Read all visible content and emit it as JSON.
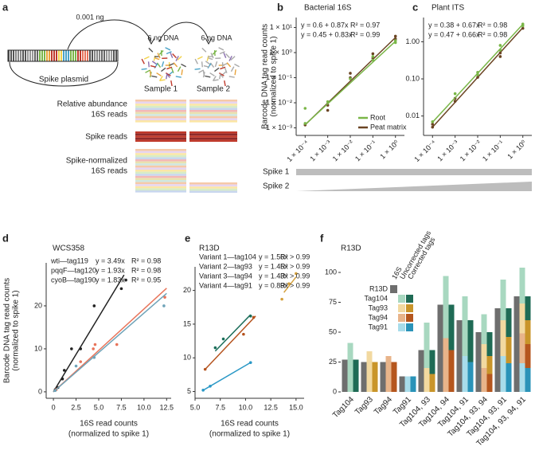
{
  "diagram": {
    "panel_label": "a",
    "amount": "0.001 ng",
    "dna": [
      "6 ng DNA",
      "6 ng DNA"
    ],
    "plasmid": "Spike plasmid",
    "samples": [
      "Sample 1",
      "Sample 2"
    ],
    "rows": [
      [
        "Relative abundance",
        "16S reads"
      ],
      [
        "Spike reads"
      ],
      [
        "Spike-normalized",
        "16S reads"
      ]
    ]
  },
  "spike_scale": [
    "Spike 1",
    "Spike 2"
  ],
  "chart_data": [
    {
      "type": "scatter",
      "panel_label": "b",
      "title": "Bacterial 16S",
      "ylabel": [
        "Barcode DNA tag read counts",
        "(normalized to spike 1)"
      ],
      "log_x": true,
      "log_y": true,
      "xlim": [
        4e-05,
        2.5
      ],
      "ylim": [
        0.0005,
        25
      ],
      "xticks": [
        {
          "value": 0.0001,
          "label": "1 × 10⁻⁴"
        },
        {
          "value": 0.001,
          "label": "1 × 10⁻³"
        },
        {
          "value": 0.01,
          "label": "1 × 10⁻²"
        },
        {
          "value": 0.1,
          "label": "1 × 10⁻¹"
        },
        {
          "value": 1,
          "label": "1 × 10⁰"
        }
      ],
      "yticks": [
        {
          "value": 0.001,
          "label": "1 × 10⁻³"
        },
        {
          "value": 0.01,
          "label": "1 × 10⁻²"
        },
        {
          "value": 0.1,
          "label": "1 × 10⁻¹"
        },
        {
          "value": 1,
          "label": "1 × 10⁰"
        },
        {
          "value": 10,
          "label": "1 × 10¹"
        }
      ],
      "legend": "lower right",
      "series": [
        {
          "name": "Peat matrix",
          "color": "#6b4423",
          "x": [
            0.0001,
            0.001,
            0.001,
            0.01,
            0.01,
            0.1,
            0.1,
            1,
            1
          ],
          "values": [
            0.0013,
            0.008,
            0.005,
            0.15,
            0.1,
            0.9,
            0.6,
            4.5,
            3.5
          ],
          "fit_x": [
            0.0001,
            1
          ],
          "fit_values": [
            0.00132,
            3.98
          ],
          "equation": "y = 0.6 + 0.87x",
          "r2": "R² = 0.97"
        },
        {
          "name": "Root",
          "color": "#7ab648",
          "x": [
            0.0001,
            0.0001,
            0.001,
            0.01,
            0.1,
            0.1,
            1,
            1
          ],
          "values": [
            0.0015,
            0.006,
            0.011,
            0.09,
            0.5,
            0.7,
            3,
            2.5
          ],
          "fit_x": [
            0.0001,
            1
          ],
          "fit_values": [
            0.00135,
            2.82
          ],
          "equation": "y = 0.45 + 0.83x",
          "r2": "R² = 0.99"
        }
      ]
    },
    {
      "type": "scatter",
      "panel_label": "c",
      "title": "Plant ITS",
      "log_x": true,
      "log_y": true,
      "xlim": [
        4e-05,
        2.5
      ],
      "ylim": [
        0.003,
        4.5
      ],
      "xticks": [
        {
          "value": 0.0001,
          "label": "1 × 10⁻⁴"
        },
        {
          "value": 0.001,
          "label": "1 × 10⁻³"
        },
        {
          "value": 0.01,
          "label": "1 × 10⁻²"
        },
        {
          "value": 0.1,
          "label": "1 × 10⁻¹"
        },
        {
          "value": 1,
          "label": "1 × 10⁰"
        }
      ],
      "yticks": [
        0.01,
        {
          "value": 0.1,
          "label": "0.10"
        },
        {
          "value": 1,
          "label": "1.00"
        }
      ],
      "series": [
        {
          "color": "#6b4423",
          "x": [
            0.0001,
            0.0001,
            0.001,
            0.001,
            0.01,
            0.1,
            0.1,
            1
          ],
          "values": [
            0.005,
            0.006,
            0.025,
            0.03,
            0.11,
            0.5,
            0.4,
            2.3
          ],
          "fit_x": [
            0.0001,
            1
          ],
          "fit_values": [
            0.005,
            2.4
          ],
          "equation": "y = 0.38 + 0.67x",
          "r2": "R² = 0.98"
        },
        {
          "color": "#7ab648",
          "x": [
            0.0001,
            0.001,
            0.01,
            0.01,
            0.1,
            0.1,
            1,
            1
          ],
          "values": [
            0.007,
            0.04,
            0.13,
            0.15,
            0.6,
            0.8,
            3.0,
            2.7
          ],
          "fit_x": [
            0.0001,
            1
          ],
          "fit_values": [
            0.0068,
            2.95
          ],
          "equation": "y = 0.47 + 0.66x",
          "r2": "R² = 0.98"
        }
      ]
    },
    {
      "type": "scatter",
      "panel_label": "d",
      "title": "WCS358",
      "ylabel": [
        "Barcode DNA tag read counts",
        "(normalized to spike 1)"
      ],
      "xlabel": [
        "16S read counts",
        "(normalized to spike 1)"
      ],
      "xlim": [
        -0.8,
        13
      ],
      "ylim": [
        -1.5,
        30
      ],
      "xticks": [
        0,
        2.5,
        {
          "value": 5,
          "label": "5.0"
        },
        7.5,
        {
          "value": 10,
          "label": "10.0"
        },
        12.5
      ],
      "yticks": [
        0,
        10,
        20
      ],
      "series": [
        {
          "name": "wti—tag119",
          "color": "#222222",
          "x": [
            0.2,
            0.5,
            1,
            1.2,
            2,
            3,
            4.5,
            7.5,
            8
          ],
          "values": [
            0.5,
            1,
            3,
            5,
            10,
            10,
            20,
            24,
            26
          ],
          "fit_x": [
            0,
            7.8
          ],
          "fit_values": [
            0,
            27.2
          ],
          "equation": "y = 3.49x",
          "r2": "R² = 0.98"
        },
        {
          "name": "pqqF—tag120",
          "color": "#e8745a",
          "x": [
            0.3,
            3,
            4.4,
            4.6,
            7,
            12.3
          ],
          "values": [
            0.5,
            7,
            10,
            11,
            11,
            22
          ],
          "fit_x": [
            0,
            12.5
          ],
          "fit_values": [
            0,
            24.1
          ],
          "equation": "y = 1.93x",
          "r2": "R² = 0.98"
        },
        {
          "name": "cyoB—tag190",
          "color": "#6fa3b8",
          "x": [
            0.2,
            2.5,
            4.5,
            12.2
          ],
          "values": [
            0.3,
            6,
            8,
            20
          ],
          "fit_x": [
            0,
            12.5
          ],
          "fit_values": [
            0,
            22.9
          ],
          "equation": "y = 1.83x",
          "r2": "R² = 0.95"
        }
      ]
    },
    {
      "type": "scatter",
      "panel_label": "e",
      "title": "R13D",
      "xlabel": [
        "16S read counts",
        "(normalized to spike 1)"
      ],
      "xlim": [
        5,
        15.8
      ],
      "ylim": [
        4,
        23.5
      ],
      "xticks": [
        {
          "value": 5,
          "label": "5.0"
        },
        7.5,
        {
          "value": 10,
          "label": "10.0"
        },
        12.5,
        {
          "value": 15,
          "label": "15.0"
        }
      ],
      "yticks": [
        5,
        10,
        15,
        20
      ],
      "series": [
        {
          "name": "Variant 1—tag104",
          "color": "#1b6e5a",
          "x": [
            7,
            7.8,
            10.5
          ],
          "values": [
            11.5,
            12.8,
            16.2
          ],
          "fit_x": [
            7,
            10.5
          ],
          "fit_values": [
            11,
            16.4
          ],
          "equation": "y = 1.56x",
          "r2": "R² > 0.99"
        },
        {
          "name": "Variant 2—tag93",
          "color": "#d4a03c",
          "x": [
            13.6,
            14.3,
            15
          ],
          "values": [
            18.7,
            21,
            22.5
          ],
          "fit_x": [
            13.8,
            15
          ],
          "fit_values": [
            19.7,
            22
          ],
          "equation": "y = 1.45x",
          "r2": "R² > 0.99"
        },
        {
          "name": "Variant 3—tag94",
          "color": "#b5531e",
          "x": [
            6,
            9.8,
            10.8
          ],
          "values": [
            8.3,
            13.5,
            16
          ],
          "fit_x": [
            6,
            11
          ],
          "fit_values": [
            8.3,
            16.2
          ],
          "equation": "y = 1.43x",
          "r2": "R² > 0.99"
        },
        {
          "name": "Variant 4—tag91",
          "color": "#2a98c6",
          "x": [
            5.8,
            6.5,
            10.5
          ],
          "values": [
            5.2,
            5.8,
            9.3
          ],
          "fit_x": [
            5.7,
            10.5
          ],
          "fit_values": [
            5.1,
            9.3
          ],
          "equation": "y = 0.89x",
          "r2": "R² > 0.99"
        }
      ]
    },
    {
      "type": "bar",
      "panel_label": "f",
      "title": "R13D",
      "categories": [
        "Tag104",
        "Tag93",
        "Tag94",
        "Tag91",
        "Tag104, 93",
        "Tag104, 94",
        "Tag104, 91",
        "Tag104, 93, 94",
        "Tag104, 93, 91",
        "Tag104, 93, 94, 91"
      ],
      "ylim": [
        0,
        108
      ],
      "yticks": [
        0,
        25,
        50,
        75,
        100
      ],
      "groups": [
        {
          "name": "16S",
          "series": [
            {
              "name": "R13D",
              "color": "#6e6e6e",
              "values": [
                27,
                25,
                25,
                13,
                35,
                73,
                60,
                50,
                70,
                80
              ]
            }
          ]
        },
        {
          "name": "Uncorrected tags",
          "series": [
            {
              "name": "Tag104",
              "color": "#a8d8c0",
              "values": [
                41,
                null,
                null,
                null,
                38,
                52,
                50,
                25,
                34,
                30
              ]
            },
            {
              "name": "Tag93",
              "color": "#f2d9a0",
              "values": [
                null,
                34,
                null,
                null,
                20,
                null,
                null,
                20,
                30,
                25
              ]
            },
            {
              "name": "Tag94",
              "color": "#e8b48a",
              "values": [
                null,
                null,
                30,
                null,
                null,
                45,
                null,
                20,
                null,
                25
              ]
            },
            {
              "name": "Tag91",
              "color": "#a8dcea",
              "values": [
                null,
                null,
                null,
                13,
                null,
                null,
                30,
                null,
                30,
                24
              ]
            }
          ]
        },
        {
          "name": "Corrected tags",
          "series": [
            {
              "color": "#1f6b55",
              "values": [
                27,
                null,
                null,
                null,
                20,
                38,
                35,
                20,
                24,
                20
              ]
            },
            {
              "color": "#c9952a",
              "values": [
                null,
                25,
                null,
                null,
                15,
                null,
                null,
                15,
                22,
                20
              ]
            },
            {
              "color": "#b5561e",
              "values": [
                null,
                null,
                25,
                null,
                null,
                35,
                null,
                15,
                null,
                20
              ]
            },
            {
              "color": "#2a93b8",
              "values": [
                null,
                null,
                null,
                13,
                null,
                null,
                25,
                null,
                24,
                20
              ]
            }
          ]
        }
      ]
    }
  ]
}
